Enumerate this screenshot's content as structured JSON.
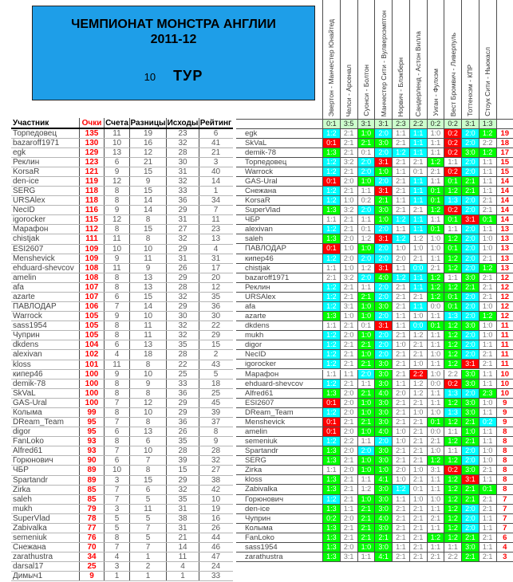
{
  "title": {
    "line1": "ЧЕМПИОНАТ МОНСТРА АНГЛИИ",
    "line2": "2011-12",
    "round_number": "10",
    "round_label": "ТУР"
  },
  "colors": {
    "accent_blue": "#1e9ee8",
    "exact_score": "#ff0000",
    "correct_difference": "#00ffff",
    "correct_outcome": "#00ff00",
    "miss": "#ffffff",
    "results_bg": "#ccffcc",
    "points_red": "#ff0000"
  },
  "standings": {
    "headers": [
      "Участник",
      "Очки",
      "Счета",
      "Разницы",
      "Исходы",
      "Рейтинг"
    ],
    "rows": [
      [
        "Торпедовец",
        "135",
        "11",
        "19",
        "23",
        "6"
      ],
      [
        "bazaroff1971",
        "130",
        "10",
        "16",
        "32",
        "41"
      ],
      [
        "egk",
        "129",
        "13",
        "12",
        "28",
        "21"
      ],
      [
        "Реклин",
        "123",
        "6",
        "21",
        "30",
        "3"
      ],
      [
        "KorsaR",
        "121",
        "9",
        "15",
        "31",
        "40"
      ],
      [
        "den-ice",
        "119",
        "12",
        "9",
        "32",
        "14"
      ],
      [
        "SERG",
        "118",
        "8",
        "15",
        "33",
        "1"
      ],
      [
        "URSAlex",
        "118",
        "8",
        "14",
        "36",
        "34"
      ],
      [
        "NecID",
        "116",
        "9",
        "14",
        "29",
        "7"
      ],
      [
        "igorocker",
        "115",
        "12",
        "8",
        "31",
        "11"
      ],
      [
        "Марафон",
        "112",
        "8",
        "15",
        "27",
        "23"
      ],
      [
        "chistjak",
        "111",
        "11",
        "8",
        "32",
        "13"
      ],
      [
        "ESI2607",
        "109",
        "10",
        "10",
        "29",
        "4"
      ],
      [
        "Menshevick",
        "109",
        "9",
        "11",
        "31",
        "31"
      ],
      [
        "ehduard-shevcov",
        "108",
        "11",
        "9",
        "26",
        "17"
      ],
      [
        "amelin",
        "108",
        "8",
        "13",
        "29",
        "20"
      ],
      [
        "afa",
        "107",
        "8",
        "13",
        "28",
        "12"
      ],
      [
        "azarte",
        "107",
        "6",
        "15",
        "32",
        "35"
      ],
      [
        "ПАВЛОДАР",
        "106",
        "7",
        "14",
        "29",
        "36"
      ],
      [
        "Warrock",
        "105",
        "9",
        "10",
        "30",
        "30"
      ],
      [
        "sass1954",
        "105",
        "8",
        "11",
        "32",
        "22"
      ],
      [
        "Чуприн",
        "105",
        "8",
        "11",
        "32",
        "29"
      ],
      [
        "dkdens",
        "104",
        "6",
        "13",
        "35",
        "15"
      ],
      [
        "alexivan",
        "102",
        "4",
        "18",
        "28",
        "2"
      ],
      [
        "kloss",
        "101",
        "11",
        "8",
        "22",
        "43"
      ],
      [
        "кипер46",
        "100",
        "9",
        "10",
        "25",
        "5"
      ],
      [
        "demik-78",
        "100",
        "8",
        "9",
        "33",
        "18"
      ],
      [
        "SkVaL",
        "100",
        "8",
        "8",
        "36",
        "25"
      ],
      [
        "GAS-Ural",
        "100",
        "7",
        "12",
        "29",
        "45"
      ],
      [
        "Колыма",
        "99",
        "8",
        "10",
        "29",
        "39"
      ],
      [
        "DReam_Team",
        "95",
        "7",
        "8",
        "36",
        "37"
      ],
      [
        "digor",
        "95",
        "6",
        "13",
        "26",
        "8"
      ],
      [
        "FanLoko",
        "93",
        "8",
        "6",
        "35",
        "9"
      ],
      [
        "Alfred61",
        "93",
        "7",
        "10",
        "28",
        "28"
      ],
      [
        "Горюнович",
        "90",
        "6",
        "7",
        "39",
        "32"
      ],
      [
        "ЧБР",
        "89",
        "10",
        "8",
        "15",
        "27"
      ],
      [
        "Spartandr",
        "89",
        "3",
        "15",
        "29",
        "38"
      ],
      [
        "Zirka",
        "85",
        "7",
        "6",
        "32",
        "42"
      ],
      [
        "saleh",
        "85",
        "7",
        "5",
        "35",
        "10"
      ],
      [
        "mukh",
        "79",
        "3",
        "11",
        "31",
        "19"
      ],
      [
        "SuperVlad",
        "78",
        "5",
        "5",
        "38",
        "16"
      ],
      [
        "Zabivalka",
        "77",
        "5",
        "7",
        "31",
        "26"
      ],
      [
        "semeniuk",
        "76",
        "8",
        "5",
        "21",
        "44"
      ],
      [
        "Снежана",
        "70",
        "7",
        "7",
        "14",
        "46"
      ],
      [
        "zarathustra",
        "34",
        "4",
        "1",
        "11",
        "47"
      ],
      [
        "darsal17",
        "25",
        "3",
        "2",
        "4",
        "24"
      ],
      [
        "Димыч1",
        "9",
        "1",
        "1",
        "1",
        "33"
      ]
    ]
  },
  "matches": [
    "Эвертон - Манчестер Юнайтед",
    "Челси - Арсенал",
    "Суонси - Болтон",
    "Манчестер Сити - Вулверхэмптон",
    "Норвич - Блэкберн",
    "Сандерленд - Астон Вилла",
    "Уиган - Фулхэм",
    "Вест Бромвич - Ливерпуль",
    "Тоттенхэм - КПР",
    "Стоук Сити - Ньюкасл"
  ],
  "results": [
    "0:1",
    "3:5",
    "3:1",
    "3:1",
    "2:3",
    "2:2",
    "0:2",
    "0:2",
    "3:1",
    "1:3"
  ],
  "predictions": [
    {
      "name": "egk",
      "s": [
        "1:2",
        "2:1",
        "1:0",
        "2:0",
        "1:1",
        "1:1",
        "1:0",
        "0:2",
        "2:0",
        "1:2"
      ],
      "pts": "19"
    },
    {
      "name": "SkVaL",
      "s": [
        "0:1",
        "2:1",
        "2:1",
        "3:0",
        "2:1",
        "1:1",
        "1:1",
        "0:2",
        "2:0",
        "2:2"
      ],
      "pts": "18"
    },
    {
      "name": "demik-78",
      "s": [
        "1:3",
        "2:1",
        "0:1",
        "2:0",
        "1:2",
        "1:1",
        "1:1",
        "0:2",
        "3:0",
        "1:2"
      ],
      "pts": "17"
    },
    {
      "name": "Торпедовец",
      "s": [
        "1:2",
        "3:2",
        "2:0",
        "3:1",
        "2:1",
        "2:1",
        "1:2",
        "1:1",
        "2:0",
        "1:1"
      ],
      "pts": "15"
    },
    {
      "name": "Warrock",
      "s": [
        "1:2",
        "2:1",
        "2:0",
        "1:0",
        "1:1",
        "0:1",
        "2:1",
        "0:2",
        "2:0",
        "1:1"
      ],
      "pts": "15"
    },
    {
      "name": "GAS-Ural",
      "s": [
        "0:1",
        "2:0",
        "1:0",
        "2:0",
        "2:1",
        "1:1",
        "1:1",
        "0:1",
        "2:1",
        "1:1"
      ],
      "pts": "14"
    },
    {
      "name": "Снежана",
      "s": [
        "1:2",
        "2:1",
        "1:1",
        "3:1",
        "2:1",
        "1:1",
        "0:1",
        "1:2",
        "2:1",
        "1:1"
      ],
      "pts": "14"
    },
    {
      "name": "KorsaR",
      "s": [
        "1:2",
        "1:0",
        "0:2",
        "2:1",
        "1:1",
        "1:1",
        "0:1",
        "1:3",
        "2:0",
        "2:1"
      ],
      "pts": "14"
    },
    {
      "name": "SuperVlad",
      "s": [
        "1:3",
        "3:2",
        "2:0",
        "3:0",
        "2:1",
        "2:1",
        "1:2",
        "0:2",
        "2:0",
        "2:1"
      ],
      "pts": "14"
    },
    {
      "name": "ЧБР",
      "s": [
        "1:1",
        "2:1",
        "1:1",
        "1:0",
        "1:2",
        "1:1",
        "1:1",
        "0:1",
        "3:1",
        "0:1"
      ],
      "pts": "14"
    },
    {
      "name": "alexivan",
      "s": [
        "1:2",
        "2:1",
        "0:1",
        "2:0",
        "1:1",
        "1:1",
        "0:1",
        "1:1",
        "2:0",
        "1:1"
      ],
      "pts": "13"
    },
    {
      "name": "saleh",
      "s": [
        "1:3",
        "2:0",
        "1:2",
        "3:1",
        "1:2",
        "1:2",
        "1:0",
        "1:2",
        "2:0",
        "1:0"
      ],
      "pts": "13"
    },
    {
      "name": "ПАВЛОДАР",
      "s": [
        "0:1",
        "1:0",
        "1:0",
        "2:0",
        "1:0",
        "1:0",
        "1:0",
        "0:1",
        "2:0",
        "1:0"
      ],
      "pts": "13"
    },
    {
      "name": "кипер46",
      "s": [
        "1:2",
        "2:0",
        "2:0",
        "2:0",
        "2:0",
        "2:1",
        "1:1",
        "1:2",
        "2:0",
        "2:1"
      ],
      "pts": "13"
    },
    {
      "name": "chistjak",
      "s": [
        "1:1",
        "1:0",
        "1:2",
        "3:1",
        "1:1",
        "0:0",
        "2:1",
        "1:2",
        "2:0",
        "1:2"
      ],
      "pts": "13"
    },
    {
      "name": "bazaroff1971",
      "s": [
        "2:1",
        "3:2",
        "2:0",
        "4:0",
        "1:2",
        "1:1",
        "1:2",
        "1:1",
        "3:0",
        "2:1"
      ],
      "pts": "12"
    },
    {
      "name": "Реклин",
      "s": [
        "1:2",
        "2:1",
        "1:1",
        "2:0",
        "2:1",
        "1:1",
        "1:2",
        "1:2",
        "2:1",
        "2:1"
      ],
      "pts": "12"
    },
    {
      "name": "URSAlex",
      "s": [
        "1:2",
        "2:1",
        "2:1",
        "2:0",
        "2:1",
        "2:1",
        "1:2",
        "0:1",
        "2:0",
        "2:1"
      ],
      "pts": "12"
    },
    {
      "name": "afa",
      "s": [
        "1:2",
        "3:1",
        "1:0",
        "3:0",
        "2:1",
        "1:1",
        "0:0",
        "0:1",
        "2:0",
        "1:0"
      ],
      "pts": "12"
    },
    {
      "name": "azarte",
      "s": [
        "1:3",
        "1:0",
        "1:0",
        "2:0",
        "1:1",
        "1:0",
        "1:1",
        "1:3",
        "2:0",
        "1:2"
      ],
      "pts": "12"
    },
    {
      "name": "dkdens",
      "s": [
        "1:1",
        "2:1",
        "0:1",
        "3:1",
        "1:1",
        "0:0",
        "0:1",
        "1:2",
        "3:0",
        "1:0"
      ],
      "pts": "11"
    },
    {
      "name": "mukh",
      "s": [
        "1:2",
        "2:0",
        "1:0",
        "2:0",
        "2:1",
        "1:2",
        "1:1",
        "1:2",
        "2:0",
        "1:0"
      ],
      "pts": "11"
    },
    {
      "name": "digor",
      "s": [
        "1:2",
        "2:1",
        "2:1",
        "2:0",
        "1:0",
        "2:1",
        "1:1",
        "1:2",
        "2:0",
        "1:1"
      ],
      "pts": "11"
    },
    {
      "name": "NecID",
      "s": [
        "1:2",
        "2:1",
        "1:0",
        "2:0",
        "2:1",
        "2:1",
        "1:0",
        "1:2",
        "2:0",
        "2:1"
      ],
      "pts": "11"
    },
    {
      "name": "igorocker",
      "s": [
        "1:2",
        "2:1",
        "2:1",
        "3:0",
        "2:1",
        "1:0",
        "1:1",
        "1:2",
        "3:1",
        "2:1"
      ],
      "pts": "11"
    },
    {
      "name": "Марафон",
      "s": [
        "1:1",
        "1:1",
        "2:0",
        "3:0",
        "2:1",
        "2:2",
        "1:0",
        "2:2",
        "3:0",
        "1:1"
      ],
      "pts": "10"
    },
    {
      "name": "ehduard-shevcov",
      "s": [
        "1:2",
        "2:1",
        "1:1",
        "3:0",
        "1:1",
        "1:2",
        "0:0",
        "0:2",
        "3:0",
        "1:1"
      ],
      "pts": "10"
    },
    {
      "name": "Alfred61",
      "s": [
        "1:3",
        "2:0",
        "2:1",
        "4:0",
        "2:0",
        "1:2",
        "1:1",
        "1:3",
        "2:0",
        "2:3"
      ],
      "pts": "10"
    },
    {
      "name": "ESI2607",
      "s": [
        "0:1",
        "2:0",
        "1:0",
        "3:0",
        "2:1",
        "2:1",
        "1:1",
        "1:2",
        "3:0",
        "1:0"
      ],
      "pts": "9"
    },
    {
      "name": "DReam_Team",
      "s": [
        "1:2",
        "2:0",
        "1:0",
        "3:0",
        "2:1",
        "1:0",
        "1:0",
        "1:3",
        "3:0",
        "1:1"
      ],
      "pts": "9"
    },
    {
      "name": "Menshevick",
      "s": [
        "0:1",
        "2:1",
        "2:1",
        "3:0",
        "2:1",
        "2:1",
        "0:1",
        "1:2",
        "2:1",
        "0:2"
      ],
      "pts": "9"
    },
    {
      "name": "amelin",
      "s": [
        "0:1",
        "2:0",
        "1:0",
        "4:0",
        "1:0",
        "2:1",
        "0:0",
        "1:1",
        "1:0",
        "1:1"
      ],
      "pts": "8"
    },
    {
      "name": "semeniuk",
      "s": [
        "1:2",
        "2:2",
        "1:1",
        "2:0",
        "1:0",
        "2:1",
        "2:1",
        "1:2",
        "2:1",
        "1:1"
      ],
      "pts": "8"
    },
    {
      "name": "Spartandr",
      "s": [
        "1:3",
        "2:0",
        "2:0",
        "3:0",
        "2:1",
        "2:1",
        "1:0",
        "1:1",
        "2:0",
        "1:0"
      ],
      "pts": "8"
    },
    {
      "name": "SERG",
      "s": [
        "1:3",
        "2:1",
        "1:0",
        "3:0",
        "2:1",
        "2:1",
        "1:2",
        "1:2",
        "2:0",
        "1:0"
      ],
      "pts": "8"
    },
    {
      "name": "Zirka",
      "s": [
        "1:1",
        "2:0",
        "1:0",
        "1:0",
        "2:0",
        "1:0",
        "3:1",
        "0:2",
        "3:0",
        "2:1"
      ],
      "pts": "8"
    },
    {
      "name": "kloss",
      "s": [
        "1:3",
        "2:1",
        "1:1",
        "4:1",
        "1:0",
        "2:1",
        "1:1",
        "1:2",
        "3:1",
        "1:1"
      ],
      "pts": "8"
    },
    {
      "name": "Zabivalka",
      "s": [
        "1:3",
        "2:1",
        "1:2",
        "3:0",
        "1:2",
        "0:1",
        "1:1",
        "1:2",
        "2:1",
        "0:1"
      ],
      "pts": "8"
    },
    {
      "name": "Горюнович",
      "s": [
        "1:2",
        "2:1",
        "1:0",
        "3:0",
        "1:1",
        "1:0",
        "1:0",
        "1:2",
        "2:1",
        "2:1"
      ],
      "pts": "7"
    },
    {
      "name": "den-ice",
      "s": [
        "1:3",
        "1:1",
        "2:1",
        "3:0",
        "2:1",
        "2:1",
        "1:1",
        "1:2",
        "2:0",
        "2:1"
      ],
      "pts": "7"
    },
    {
      "name": "Чуприн",
      "s": [
        "0:2",
        "2:0",
        "2:1",
        "4:0",
        "2:1",
        "2:1",
        "2:1",
        "1:2",
        "2:0",
        "1:1"
      ],
      "pts": "7"
    },
    {
      "name": "Колыма",
      "s": [
        "1:3",
        "2:1",
        "2:1",
        "3:0",
        "2:1",
        "2:1",
        "1:1",
        "1:2",
        "2:0",
        "1:1"
      ],
      "pts": "7"
    },
    {
      "name": "FanLoko",
      "s": [
        "1:3",
        "2:1",
        "2:1",
        "2:1",
        "2:1",
        "2:1",
        "1:2",
        "1:2",
        "2:1",
        "2:1"
      ],
      "pts": "6"
    },
    {
      "name": "sass1954",
      "s": [
        "1:3",
        "2:0",
        "1:0",
        "3:0",
        "1:1",
        "2:1",
        "1:1",
        "1:1",
        "3:0",
        "1:1"
      ],
      "pts": "4"
    },
    {
      "name": "zarathustra",
      "s": [
        "1:3",
        "3:1",
        "1:1",
        "4:1",
        "2:1",
        "2:1",
        "2:1",
        "2:2",
        "2:1",
        "2:1"
      ],
      "pts": "3"
    }
  ]
}
